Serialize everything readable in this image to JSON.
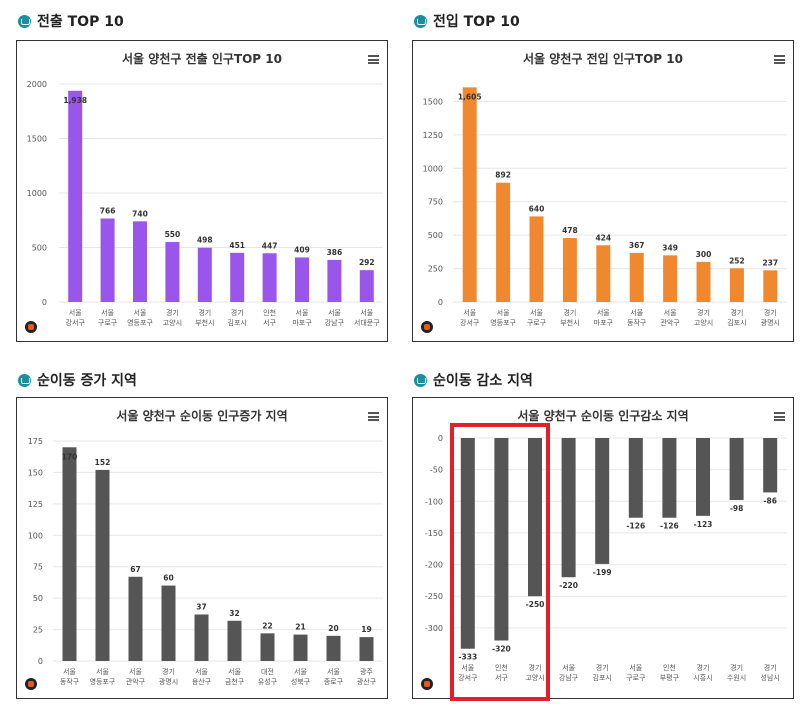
{
  "sections": [
    {
      "title": "전출 TOP 10",
      "icon": "home-icon"
    },
    {
      "title": "전입 TOP 10",
      "icon": "home-icon"
    },
    {
      "title": "순이동 증가 지역",
      "icon": "home-icon"
    },
    {
      "title": "순이동 감소 지역",
      "icon": "home-icon"
    }
  ],
  "colors": {
    "purple": "#9a55ea",
    "orange": "#f0882f",
    "gray": "#555555",
    "highlight": "#e0202a"
  },
  "chart_data": [
    {
      "type": "bar",
      "title": "서울 양천구 전출 인구TOP 10",
      "categories": [
        [
          "서울",
          "강서구"
        ],
        [
          "서울",
          "구로구"
        ],
        [
          "서울",
          "영등포구"
        ],
        [
          "경기",
          "고양시"
        ],
        [
          "경기",
          "부천시"
        ],
        [
          "경기",
          "김포시"
        ],
        [
          "인천",
          "서구"
        ],
        [
          "서울",
          "마포구"
        ],
        [
          "서울",
          "강남구"
        ],
        [
          "서울",
          "서대문구"
        ]
      ],
      "values": [
        1938,
        766,
        740,
        550,
        498,
        451,
        447,
        409,
        386,
        292
      ],
      "labels": [
        "1,938",
        "766",
        "740",
        "550",
        "498",
        "451",
        "447",
        "409",
        "386",
        "292"
      ],
      "ylim": [
        0,
        2000
      ],
      "ticks": [
        0,
        500,
        1000,
        1500,
        2000
      ],
      "color": "#9a55ea"
    },
    {
      "type": "bar",
      "title": "서울 양천구 전입 인구TOP 10",
      "categories": [
        [
          "서울",
          "강서구"
        ],
        [
          "서울",
          "영등포구"
        ],
        [
          "서울",
          "구로구"
        ],
        [
          "경기",
          "부천시"
        ],
        [
          "서울",
          "마포구"
        ],
        [
          "서울",
          "동작구"
        ],
        [
          "서울",
          "관악구"
        ],
        [
          "경기",
          "고양시"
        ],
        [
          "경기",
          "김포시"
        ],
        [
          "경기",
          "광명시"
        ]
      ],
      "values": [
        1605,
        892,
        640,
        478,
        424,
        367,
        349,
        300,
        252,
        237
      ],
      "labels": [
        "1,605",
        "892",
        "640",
        "478",
        "424",
        "367",
        "349",
        "300",
        "252",
        "237"
      ],
      "ylim": [
        0,
        1600
      ],
      "ticks": [
        0,
        250,
        500,
        750,
        1000,
        1250,
        1500
      ],
      "color": "#f0882f"
    },
    {
      "type": "bar",
      "title": "서울 양천구 순이동 인구증가 지역",
      "categories": [
        [
          "서울",
          "동작구"
        ],
        [
          "서울",
          "영등포구"
        ],
        [
          "서울",
          "관악구"
        ],
        [
          "경기",
          "광명시"
        ],
        [
          "서울",
          "용산구"
        ],
        [
          "서울",
          "금천구"
        ],
        [
          "대전",
          "유성구"
        ],
        [
          "서울",
          "성북구"
        ],
        [
          "서울",
          "종로구"
        ],
        [
          "광주",
          "광산구"
        ]
      ],
      "values": [
        170,
        152,
        67,
        60,
        37,
        32,
        22,
        21,
        20,
        19
      ],
      "labels": [
        "170",
        "152",
        "67",
        "60",
        "37",
        "32",
        "22",
        "21",
        "20",
        "19"
      ],
      "ylim": [
        0,
        175
      ],
      "ticks": [
        0,
        25,
        50,
        75,
        100,
        125,
        150,
        175
      ],
      "color": "#555555"
    },
    {
      "type": "bar",
      "title": "서울 양천구 순이동 인구감소 지역",
      "categories": [
        [
          "서울",
          "강서구"
        ],
        [
          "인천",
          "서구"
        ],
        [
          "경기",
          "고양시"
        ],
        [
          "서울",
          "강남구"
        ],
        [
          "경기",
          "김포시"
        ],
        [
          "서울",
          "구로구"
        ],
        [
          "인천",
          "부평구"
        ],
        [
          "경기",
          "시흥시"
        ],
        [
          "경기",
          "수원시"
        ],
        [
          "경기",
          "성남시"
        ]
      ],
      "values": [
        -333,
        -320,
        -250,
        -220,
        -199,
        -126,
        -126,
        -123,
        -98,
        -86
      ],
      "labels": [
        "-333",
        "-320",
        "-250",
        "-220",
        "-199",
        "-126",
        "-126",
        "-123",
        "-98",
        "-86"
      ],
      "ylim": [
        -335,
        0
      ],
      "ticks": [
        0,
        -50,
        -100,
        -150,
        -200,
        -250,
        -300
      ],
      "color": "#555555"
    }
  ]
}
